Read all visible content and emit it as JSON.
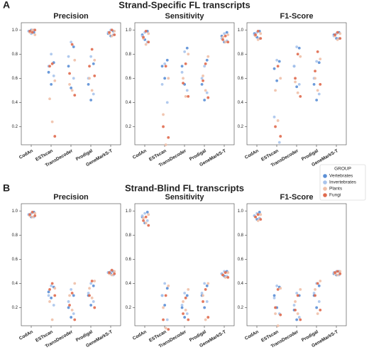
{
  "sections": [
    {
      "label": "A",
      "title": "Strand-Specific FL transcripts"
    },
    {
      "label": "B",
      "title": "Strand-Blind FL transcripts"
    }
  ],
  "legend": {
    "title": "GROUP",
    "entries": [
      {
        "name": "Vertebrates",
        "color": "#5b8fd6"
      },
      {
        "name": "Invertebrates",
        "color": "#a9c4ec"
      },
      {
        "name": "Plants",
        "color": "#f0c0a8"
      },
      {
        "name": "Fungi",
        "color": "#e06a4e"
      }
    ]
  },
  "chart_data": [
    {
      "type": "swarm",
      "title": "Precision",
      "categories": [
        "CodAn",
        "ESTscan",
        "TransDecoder",
        "Prodigal",
        "GeneMarkS-T"
      ],
      "ylim": [
        0.05,
        1.06
      ],
      "yticks": [
        0.2,
        0.4,
        0.6,
        0.8,
        {
          "value": 1,
          "label": "1.0"
        }
      ],
      "series": [
        {
          "values": [
            [
              0.98,
              0.99,
              1.0
            ],
            [
              0.73,
              0.65,
              0.55
            ],
            [
              0.86,
              0.7,
              0.52
            ],
            [
              0.72,
              0.55,
              0.42
            ],
            [
              0.99,
              0.97,
              0.95
            ]
          ]
        },
        {
          "values": [
            [
              0.97,
              0.99,
              1.0
            ],
            [
              0.8,
              0.7,
              0.62
            ],
            [
              0.9,
              0.78,
              0.6
            ],
            [
              0.78,
              0.6,
              0.47
            ],
            [
              1.0,
              0.98,
              0.96
            ]
          ]
        },
        {
          "values": [
            [
              0.96,
              0.98,
              1.0
            ],
            [
              0.58,
              0.43,
              0.24
            ],
            [
              0.75,
              0.55,
              0.5
            ],
            [
              0.75,
              0.6,
              0.5
            ],
            [
              0.99,
              0.97,
              0.95
            ]
          ]
        },
        {
          "values": [
            [
              0.98,
              0.99,
              1.0
            ],
            [
              0.72,
              0.7,
              0.12
            ],
            [
              0.88,
              0.64,
              0.46
            ],
            [
              0.84,
              0.7,
              0.62
            ],
            [
              1.0,
              0.98,
              0.96
            ]
          ]
        }
      ]
    },
    {
      "type": "swarm",
      "title": "Sensitivity",
      "categories": [
        "CodAn",
        "ESTscan",
        "TransDecoder",
        "Prodigal",
        "GeneMarkS-T"
      ],
      "ylim": [
        0.05,
        1.06
      ],
      "yticks": [
        0.2,
        0.4,
        0.6,
        0.8,
        {
          "value": 1,
          "label": "1.0"
        }
      ],
      "series": [
        {
          "values": [
            [
              0.99,
              0.96,
              0.92
            ],
            [
              0.75,
              0.7,
              0.6
            ],
            [
              0.85,
              0.7,
              0.55
            ],
            [
              0.75,
              0.55,
              0.42
            ],
            [
              0.98,
              0.95,
              0.9
            ]
          ]
        },
        {
          "values": [
            [
              0.98,
              0.95,
              0.9
            ],
            [
              0.72,
              0.55,
              0.4
            ],
            [
              0.82,
              0.65,
              0.5
            ],
            [
              0.7,
              0.6,
              0.48
            ],
            [
              0.97,
              0.93,
              0.91
            ]
          ]
        },
        {
          "values": [
            [
              0.97,
              0.93,
              0.88
            ],
            [
              0.6,
              0.3,
              0.05
            ],
            [
              0.8,
              0.6,
              0.45
            ],
            [
              0.78,
              0.62,
              0.5
            ],
            [
              0.96,
              0.94,
              0.9
            ]
          ]
        },
        {
          "values": [
            [
              0.99,
              0.94,
              0.9
            ],
            [
              0.7,
              0.2,
              0.11
            ],
            [
              0.72,
              0.56,
              0.45
            ],
            [
              0.72,
              0.58,
              0.44
            ],
            [
              0.95,
              0.92,
              0.9
            ]
          ]
        }
      ]
    },
    {
      "type": "swarm",
      "title": "F1-Score",
      "categories": [
        "CodAn",
        "ESTscan",
        "TransDecoder",
        "Prodigal",
        "GeneMarkS-T"
      ],
      "ylim": [
        0.05,
        1.06
      ],
      "yticks": [
        0.2,
        0.4,
        0.6,
        0.8,
        {
          "value": 1,
          "label": "1.0"
        }
      ],
      "series": [
        {
          "values": [
            [
              0.99,
              0.97,
              0.94
            ],
            [
              0.74,
              0.68,
              0.58
            ],
            [
              0.85,
              0.7,
              0.53
            ],
            [
              0.73,
              0.55,
              0.42
            ],
            [
              0.98,
              0.96,
              0.93
            ]
          ]
        },
        {
          "values": [
            [
              0.98,
              0.96,
              0.93
            ],
            [
              0.75,
              0.28,
              0.07
            ],
            [
              0.86,
              0.7,
              0.55
            ],
            [
              0.74,
              0.6,
              0.47
            ],
            [
              0.97,
              0.95,
              0.93
            ]
          ]
        },
        {
          "values": [
            [
              0.97,
              0.95,
              0.92
            ],
            [
              0.6,
              0.5,
              0.25
            ],
            [
              0.78,
              0.57,
              0.48
            ],
            [
              0.76,
              0.6,
              0.5
            ],
            [
              0.97,
              0.95,
              0.92
            ]
          ]
        },
        {
          "values": [
            [
              0.99,
              0.96,
              0.93
            ],
            [
              0.7,
              0.2,
              0.12
            ],
            [
              0.8,
              0.6,
              0.45
            ],
            [
              0.82,
              0.66,
              0.55
            ],
            [
              0.98,
              0.96,
              0.93
            ]
          ]
        }
      ]
    },
    {
      "type": "swarm",
      "title": "Precision",
      "categories": [
        "CodAn",
        "ESTscan",
        "TransDecoder",
        "Prodigal",
        "GeneMarkS-T"
      ],
      "ylim": [
        0.05,
        1.06
      ],
      "yticks": [
        0.2,
        0.4,
        0.6,
        0.8,
        {
          "value": 1,
          "label": "1.0"
        }
      ],
      "series": [
        {
          "values": [
            [
              0.99,
              0.97,
              0.95
            ],
            [
              0.37,
              0.33,
              0.28
            ],
            [
              0.3,
              0.2,
              0.12
            ],
            [
              0.38,
              0.3,
              0.22
            ],
            [
              0.5,
              0.49,
              0.48
            ]
          ]
        },
        {
          "values": [
            [
              0.98,
              0.97,
              0.95
            ],
            [
              0.38,
              0.3,
              0.22
            ],
            [
              0.35,
              0.25,
              0.15
            ],
            [
              0.4,
              0.32,
              0.25
            ],
            [
              0.5,
              0.49,
              0.47
            ]
          ]
        },
        {
          "values": [
            [
              0.98,
              0.96,
              0.95
            ],
            [
              0.36,
              0.25,
              0.1
            ],
            [
              0.4,
              0.3,
              0.18
            ],
            [
              0.42,
              0.36,
              0.28
            ],
            [
              0.5,
              0.48,
              0.47
            ]
          ]
        },
        {
          "values": [
            [
              0.99,
              0.97,
              0.96
            ],
            [
              0.4,
              0.35,
              0.3
            ],
            [
              0.32,
              0.22,
              0.1
            ],
            [
              0.42,
              0.3,
              0.2
            ],
            [
              0.51,
              0.49,
              0.48
            ]
          ]
        }
      ]
    },
    {
      "type": "swarm",
      "title": "Sensitivity",
      "categories": [
        "CodAn",
        "ESTscan",
        "TransDecoder",
        "Prodigal",
        "GeneMarkS-T"
      ],
      "ylim": [
        0.05,
        1.06
      ],
      "yticks": [
        0.2,
        0.4,
        0.6,
        0.8,
        {
          "value": 1,
          "label": "1.0"
        }
      ],
      "series": [
        {
          "values": [
            [
              0.99,
              0.95,
              0.9
            ],
            [
              0.36,
              0.3,
              0.22
            ],
            [
              0.3,
              0.2,
              0.12
            ],
            [
              0.38,
              0.3,
              0.2
            ],
            [
              0.5,
              0.48,
              0.46
            ]
          ]
        },
        {
          "values": [
            [
              0.98,
              0.96,
              0.92
            ],
            [
              0.4,
              0.3,
              0.1
            ],
            [
              0.32,
              0.22,
              0.15
            ],
            [
              0.4,
              0.32,
              0.25
            ],
            [
              0.5,
              0.48,
              0.46
            ]
          ]
        },
        {
          "values": [
            [
              0.97,
              0.94,
              0.9
            ],
            [
              0.38,
              0.2,
              0.03
            ],
            [
              0.35,
              0.25,
              0.18
            ],
            [
              0.4,
              0.3,
              0.1
            ],
            [
              0.49,
              0.47,
              0.45
            ]
          ]
        },
        {
          "values": [
            [
              0.95,
              0.92,
              0.88
            ],
            [
              0.3,
              0.1,
              0.02
            ],
            [
              0.28,
              0.15,
              0.1
            ],
            [
              0.35,
              0.25,
              0.12
            ],
            [
              0.49,
              0.47,
              0.45
            ]
          ]
        }
      ]
    },
    {
      "type": "swarm",
      "title": "F1-Score",
      "categories": [
        "CodAn",
        "ESTscan",
        "TransDecoder",
        "Prodigal",
        "GeneMarkS-T"
      ],
      "ylim": [
        0.05,
        1.06
      ],
      "yticks": [
        0.2,
        0.4,
        0.6,
        0.8,
        {
          "value": 1,
          "label": "1.0"
        }
      ],
      "series": [
        {
          "values": [
            [
              0.99,
              0.96,
              0.93
            ],
            [
              0.37,
              0.3,
              0.2
            ],
            [
              0.3,
              0.18,
              0.1
            ],
            [
              0.38,
              0.3,
              0.2
            ],
            [
              0.5,
              0.48,
              0.47
            ]
          ]
        },
        {
          "values": [
            [
              0.98,
              0.96,
              0.94
            ],
            [
              0.38,
              0.28,
              0.15
            ],
            [
              0.32,
              0.22,
              0.12
            ],
            [
              0.4,
              0.32,
              0.25
            ],
            [
              0.5,
              0.49,
              0.47
            ]
          ]
        },
        {
          "values": [
            [
              0.97,
              0.95,
              0.92
            ],
            [
              0.36,
              0.15,
              0.05
            ],
            [
              0.35,
              0.25,
              0.15
            ],
            [
              0.42,
              0.35,
              0.15
            ],
            [
              0.5,
              0.48,
              0.47
            ]
          ]
        },
        {
          "values": [
            [
              0.97,
              0.95,
              0.93
            ],
            [
              0.35,
              0.2,
              0.14
            ],
            [
              0.3,
              0.18,
              0.1
            ],
            [
              0.4,
              0.3,
              0.18
            ],
            [
              0.5,
              0.49,
              0.48
            ]
          ]
        }
      ]
    }
  ]
}
